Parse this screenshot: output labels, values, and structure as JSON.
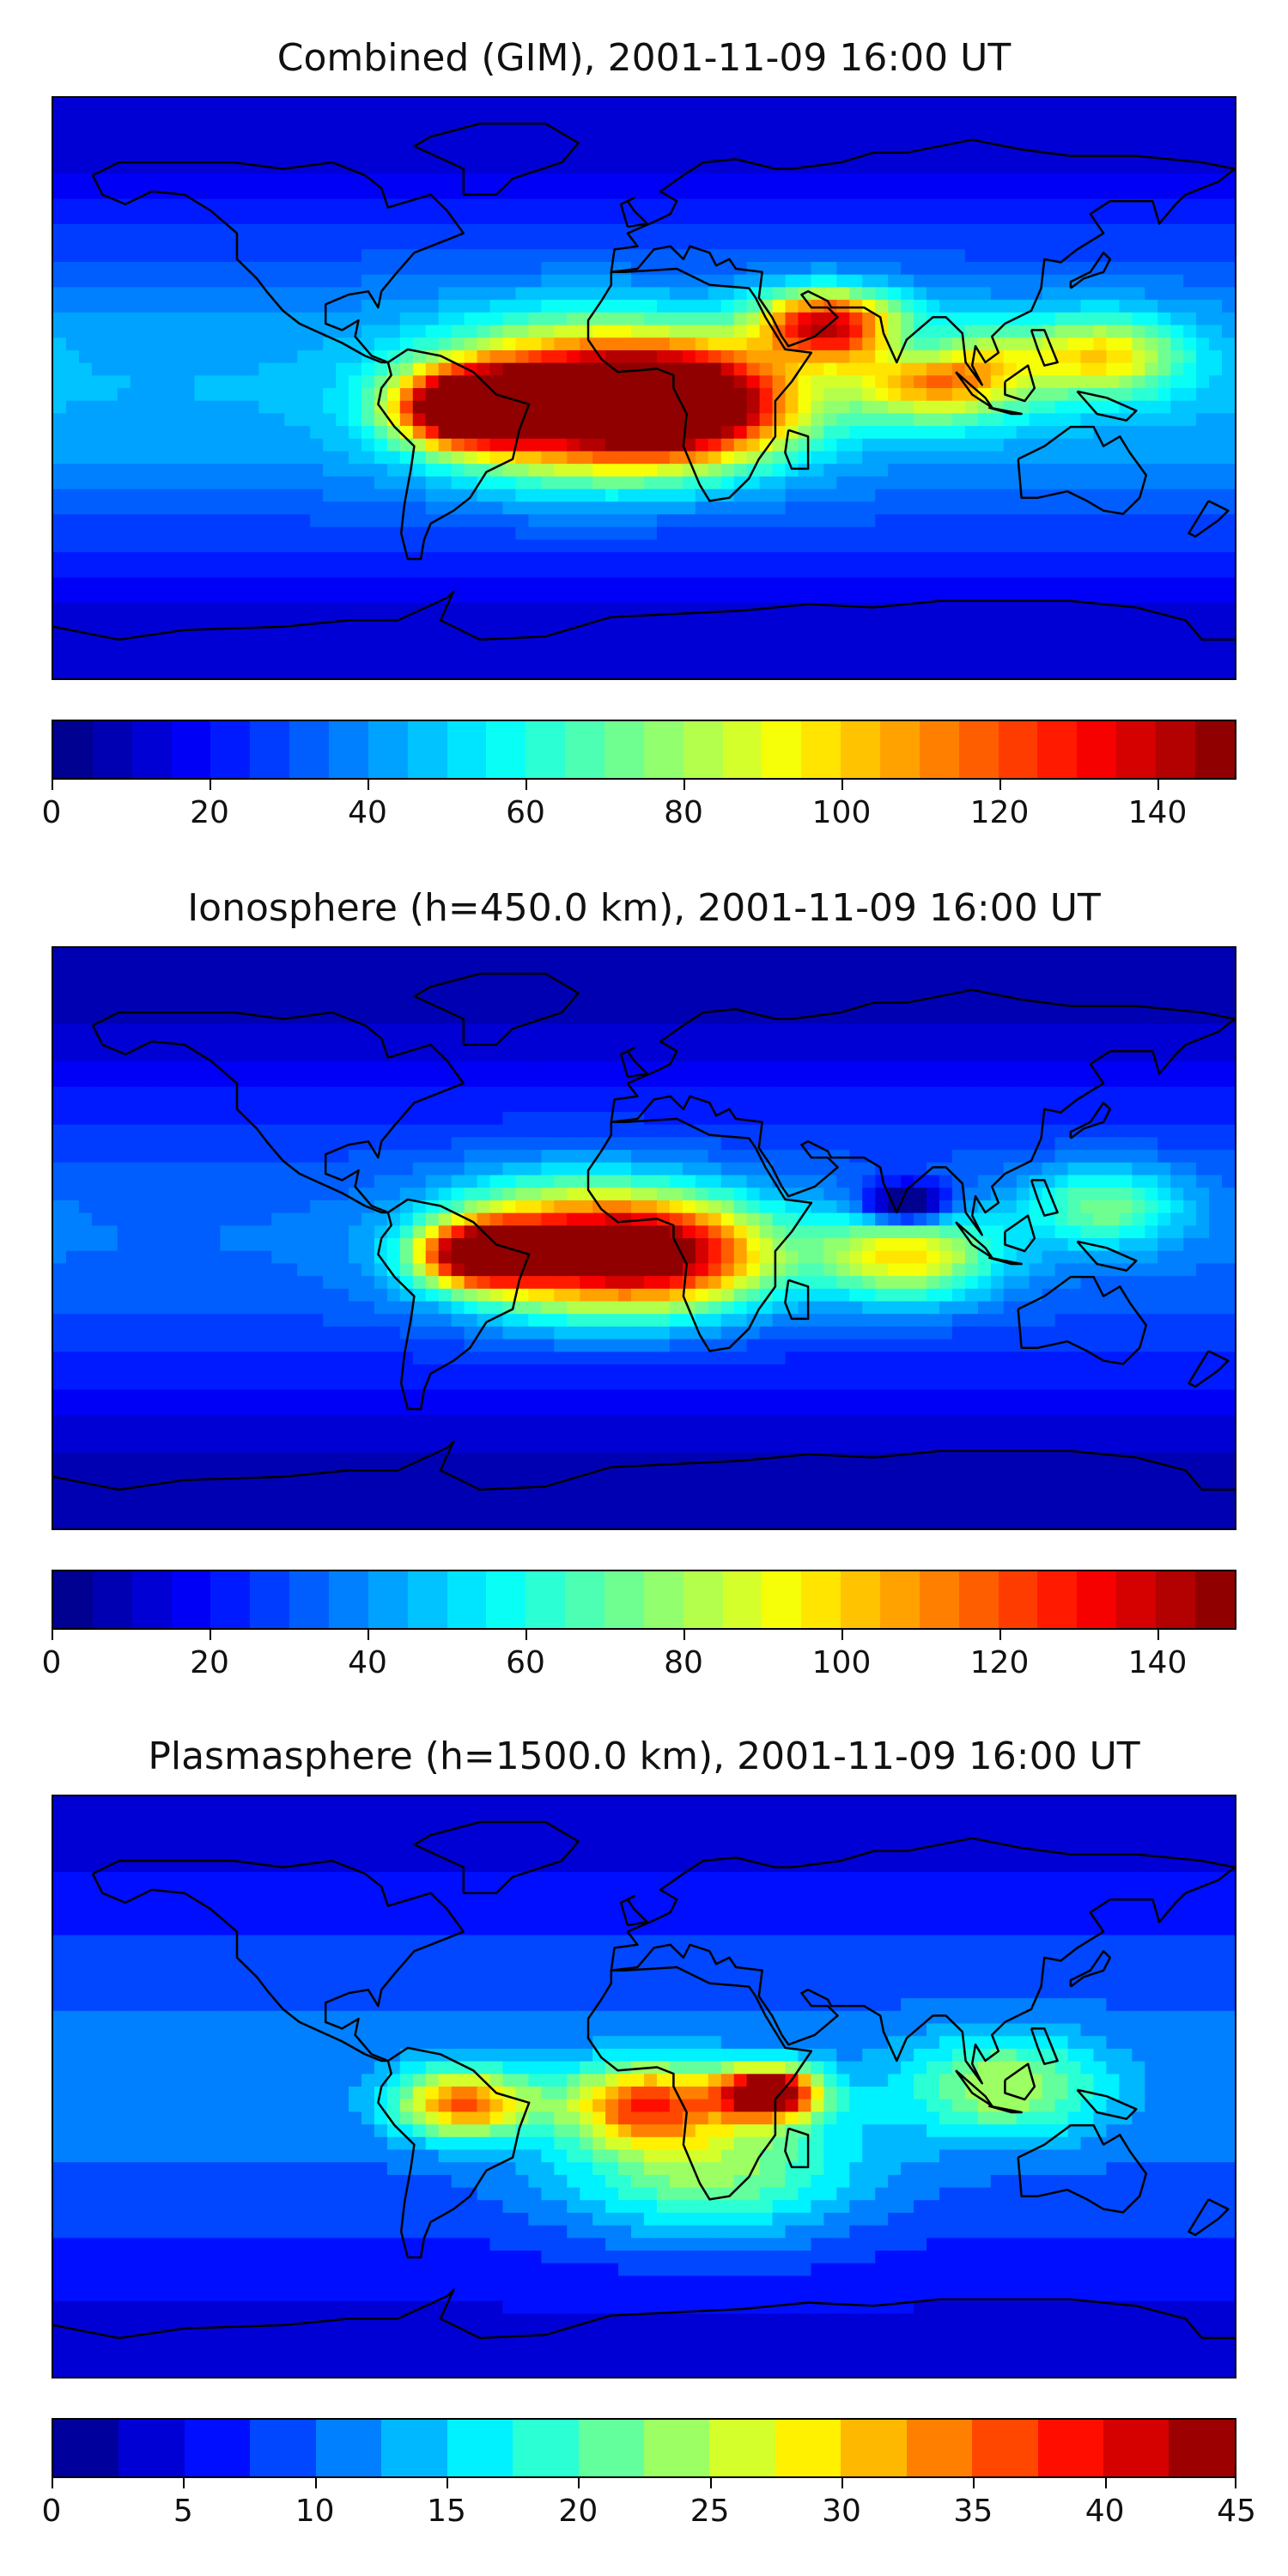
{
  "panels": [
    {
      "title": "Combined (GIM), 2001-11-09 16:00 UT",
      "colorbar": {
        "min": 0,
        "max": 150,
        "bins": 30,
        "ticks": [
          "0",
          "20",
          "40",
          "60",
          "80",
          "100",
          "120",
          "140"
        ],
        "tick_values": [
          0,
          20,
          40,
          60,
          80,
          100,
          120,
          140
        ]
      },
      "field": {
        "max_value": 150,
        "base_low": 10,
        "base_high": 45
      },
      "features": [
        {
          "name": "South America peak",
          "lon": -53,
          "lat": -6,
          "value": 130,
          "spread": 14
        },
        {
          "name": "Atlantic band",
          "lon": -20,
          "lat": -4,
          "value": 110,
          "spread": 28
        },
        {
          "name": "Africa band",
          "lon": 15,
          "lat": -5,
          "value": 105,
          "spread": 22
        },
        {
          "name": "Arabia crest",
          "lon": 55,
          "lat": 20,
          "value": 95,
          "spread": 14
        },
        {
          "name": "Indian Ocean crest",
          "lon": 90,
          "lat": 5,
          "value": 80,
          "spread": 18
        },
        {
          "name": "Asia low",
          "lon": 85,
          "lat": 12,
          "value": -40,
          "spread": 10
        },
        {
          "name": "Pacific crest",
          "lon": 140,
          "lat": 10,
          "value": 55,
          "spread": 16
        }
      ]
    },
    {
      "title": "Ionosphere  (h=450.0 km), 2001-11-09 16:00 UT",
      "colorbar": {
        "min": 0,
        "max": 150,
        "bins": 30,
        "ticks": [
          "0",
          "20",
          "40",
          "60",
          "80",
          "100",
          "120",
          "140"
        ],
        "tick_values": [
          0,
          20,
          40,
          60,
          80,
          100,
          120,
          140
        ]
      },
      "field": {
        "max_value": 150,
        "base_low": 5,
        "base_high": 35
      },
      "features": [
        {
          "name": "South America peak",
          "lon": -50,
          "lat": -5,
          "value": 105,
          "spread": 12
        },
        {
          "name": "Atlantic band",
          "lon": -25,
          "lat": -3,
          "value": 90,
          "spread": 25
        },
        {
          "name": "Africa band",
          "lon": 10,
          "lat": -5,
          "value": 85,
          "spread": 22
        },
        {
          "name": "Indian Ocean crest",
          "lon": 80,
          "lat": -5,
          "value": 65,
          "spread": 18
        },
        {
          "name": "Asia low",
          "lon": 80,
          "lat": 10,
          "value": -60,
          "spread": 9
        },
        {
          "name": "Pacific crest",
          "lon": 140,
          "lat": 10,
          "value": 40,
          "spread": 16
        }
      ]
    },
    {
      "title": "Plasmasphere (h=1500.0 km), 2001-11-09 16:00 UT",
      "colorbar": {
        "min": 0,
        "max": 45,
        "bins": 18,
        "ticks": [
          "0",
          "5",
          "10",
          "15",
          "20",
          "25",
          "30",
          "35",
          "40",
          "45"
        ],
        "tick_values": [
          0,
          5,
          10,
          15,
          20,
          25,
          30,
          35,
          40,
          45
        ]
      },
      "field": {
        "max_value": 45,
        "base_low": 4,
        "base_high": 11
      },
      "features": [
        {
          "name": "East Africa peak",
          "lon": 38,
          "lat": -2,
          "value": 38,
          "spread": 10
        },
        {
          "name": "South America crest",
          "lon": -55,
          "lat": -5,
          "value": 24,
          "spread": 14
        },
        {
          "name": "Central Africa crest",
          "lon": 0,
          "lat": -5,
          "value": 22,
          "spread": 16
        },
        {
          "name": "Southern crest",
          "lon": 20,
          "lat": -25,
          "value": 14,
          "spread": 30
        },
        {
          "name": "Asia crest",
          "lon": 110,
          "lat": 0,
          "value": 14,
          "spread": 20
        }
      ]
    }
  ]
}
